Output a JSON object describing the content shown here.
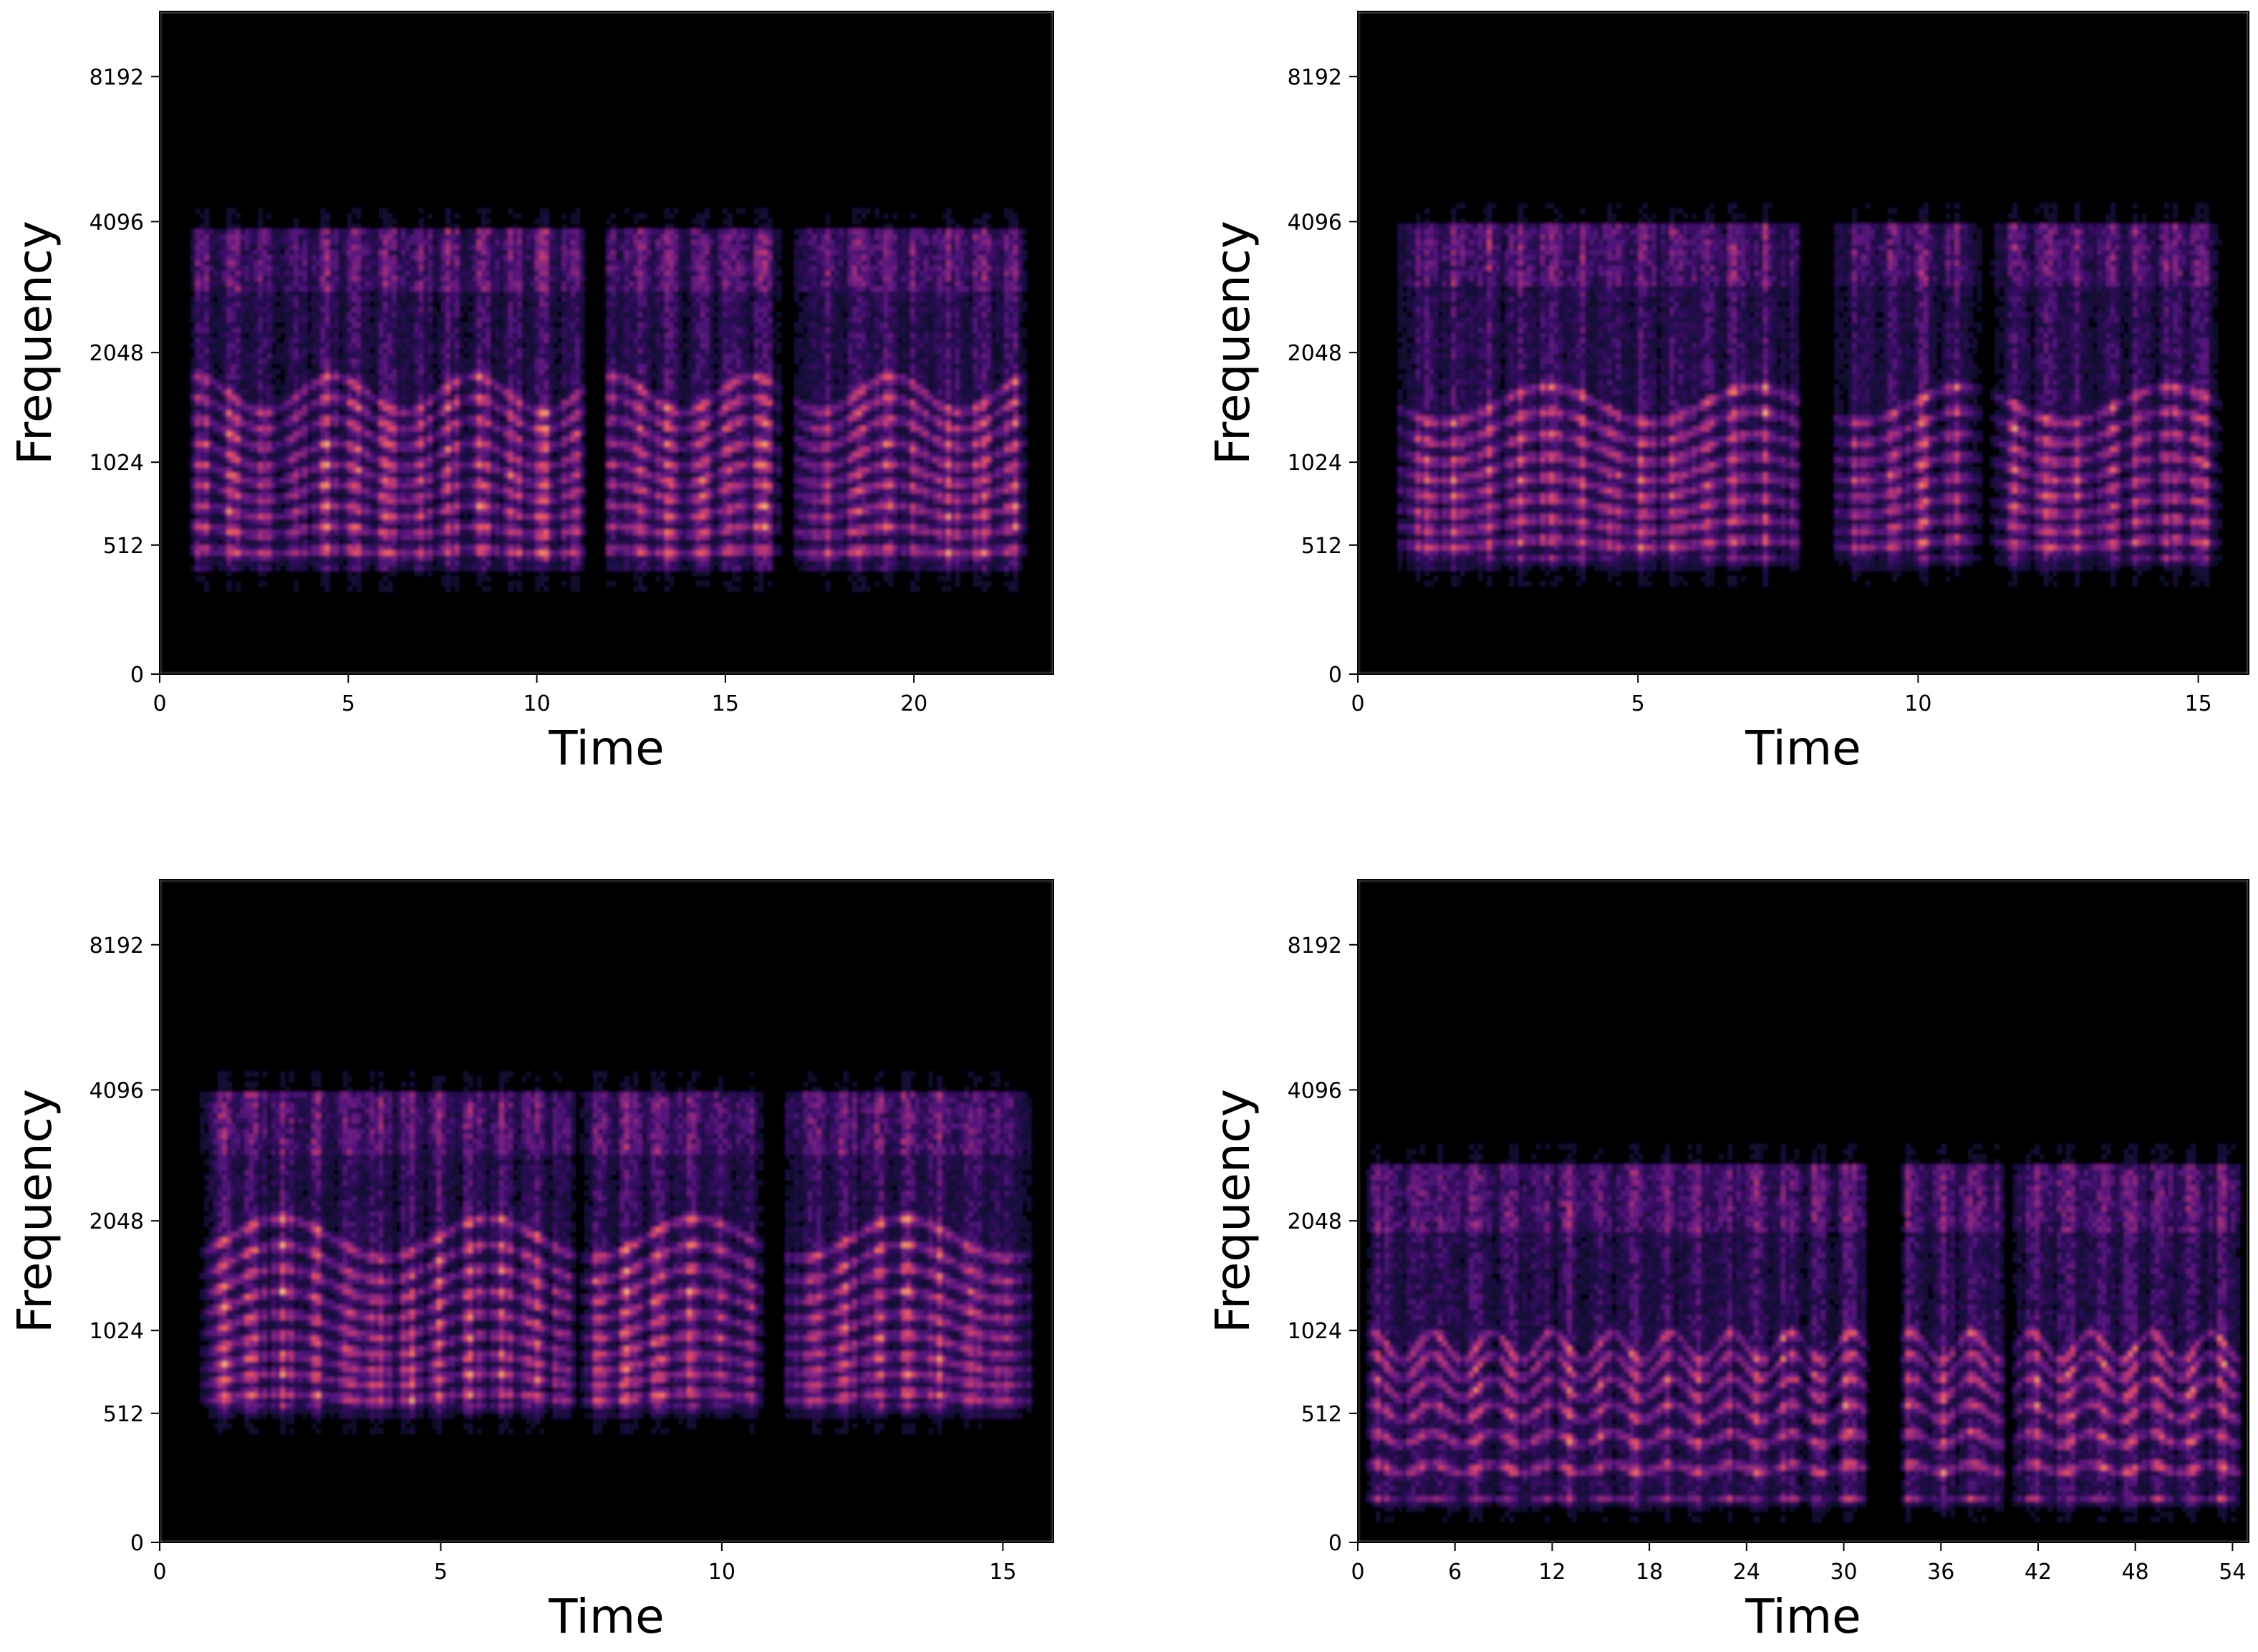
{
  "chart_data": [
    {
      "type": "heatmap",
      "colormap": "magma",
      "xlabel": "Time",
      "ylabel": "Frequency",
      "xlim": [
        0,
        23.7
      ],
      "x_ticks": [
        "0",
        "5",
        "10",
        "15",
        "20"
      ],
      "y_ticks": [
        "0",
        "512",
        "1024",
        "2048",
        "4096",
        "8192"
      ],
      "y_scale": "mel",
      "energy_band_hz": [
        350,
        4000
      ],
      "segments": [
        [
          0.8,
          11.3
        ],
        [
          11.8,
          16.5
        ],
        [
          16.8,
          23.0
        ]
      ],
      "harmonics_hz": [
        480,
        590,
        700,
        820,
        940,
        1080,
        1250,
        1420,
        1600
      ]
    },
    {
      "type": "heatmap",
      "colormap": "magma",
      "xlabel": "Time",
      "ylabel": "Frequency",
      "xlim": [
        0,
        15.9
      ],
      "x_ticks": [
        "0",
        "5",
        "10",
        "15"
      ],
      "y_ticks": [
        "0",
        "512",
        "1024",
        "2048",
        "4096",
        "8192"
      ],
      "y_scale": "mel",
      "energy_band_hz": [
        380,
        4100
      ],
      "segments": [
        [
          0.7,
          7.9
        ],
        [
          8.5,
          11.1
        ],
        [
          11.3,
          15.4
        ]
      ],
      "harmonics_hz": [
        420,
        520,
        620,
        730,
        850,
        980,
        1130,
        1300,
        1500
      ]
    },
    {
      "type": "heatmap",
      "colormap": "magma",
      "xlabel": "Time",
      "ylabel": "Frequency",
      "xlim": [
        0,
        15.9
      ],
      "x_ticks": [
        "0",
        "5",
        "10",
        "15"
      ],
      "y_ticks": [
        "0",
        "512",
        "1024",
        "2048",
        "4096",
        "8192"
      ],
      "y_scale": "mel",
      "energy_band_hz": [
        480,
        4100
      ],
      "segments": [
        [
          0.7,
          7.4
        ],
        [
          7.5,
          10.7
        ],
        [
          11.1,
          15.5
        ]
      ],
      "harmonics_hz": [
        520,
        600,
        700,
        800,
        920,
        1060,
        1220,
        1400,
        1600,
        1850
      ]
    },
    {
      "type": "heatmap",
      "colormap": "magma",
      "xlabel": "Time",
      "ylabel": "Frequency",
      "xlim": [
        0,
        55
      ],
      "x_ticks": [
        "0",
        "6",
        "12",
        "18",
        "24",
        "30",
        "36",
        "42",
        "48",
        "54"
      ],
      "y_ticks": [
        "0",
        "512",
        "1024",
        "2048",
        "4096",
        "8192"
      ],
      "y_scale": "mel",
      "energy_band_hz": [
        100,
        2800
      ],
      "segments": [
        [
          0.5,
          31.5
        ],
        [
          33.5,
          39.8
        ],
        [
          40.5,
          54.5
        ]
      ],
      "harmonics_hz": [
        130,
        260,
        390,
        520,
        650,
        780,
        910
      ]
    }
  ]
}
